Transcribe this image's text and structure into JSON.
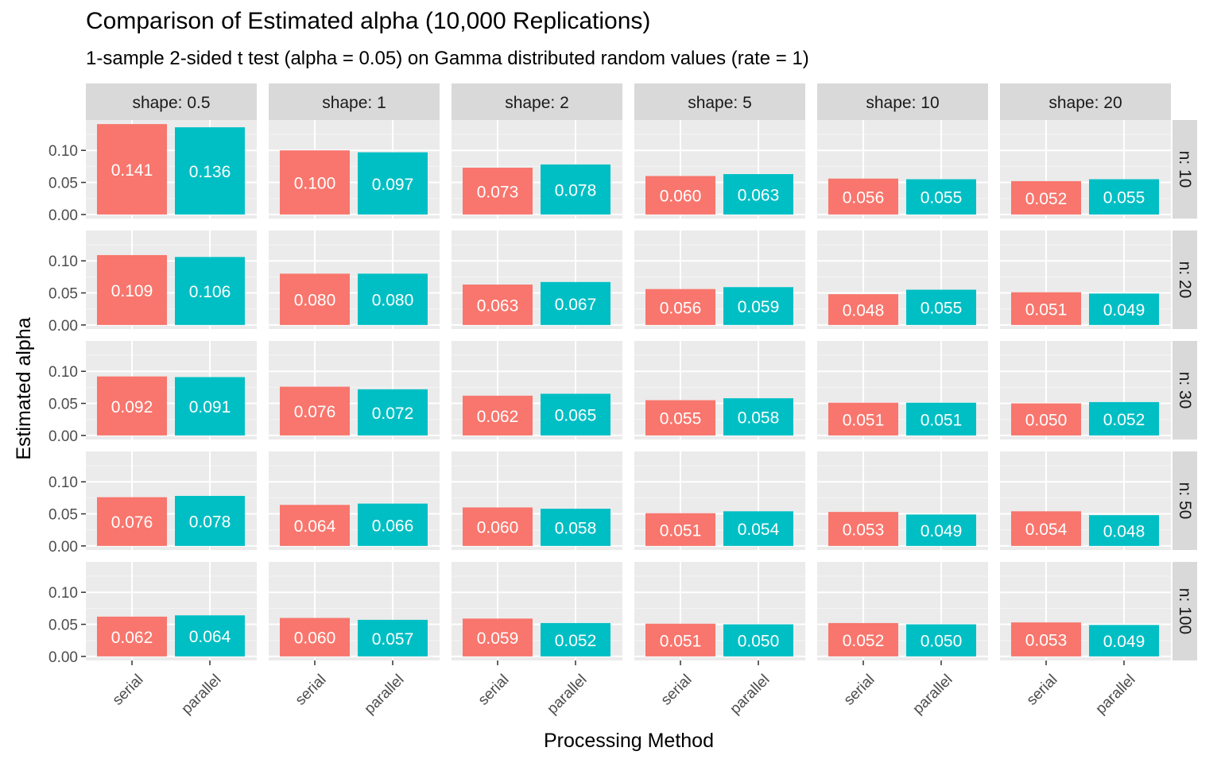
{
  "chart_data": {
    "type": "bar",
    "title": "Comparison of Estimated alpha (10,000 Replications)",
    "subtitle": "1-sample 2-sided t test (alpha = 0.05) on Gamma distributed random values (rate = 1)",
    "xlabel": "Processing Method",
    "ylabel": "Estimated alpha",
    "categories": [
      "serial",
      "parallel"
    ],
    "ylim": [
      0,
      0.141
    ],
    "yticks": [
      "0.00",
      "0.05",
      "0.10"
    ],
    "ytick_values": [
      0,
      0.05,
      0.1
    ],
    "facet_cols": [
      "shape: 0.5",
      "shape: 1",
      "shape: 2",
      "shape: 5",
      "shape: 10",
      "shape: 20"
    ],
    "facet_rows": [
      "n: 10",
      "n: 20",
      "n: 30",
      "n: 50",
      "n: 100"
    ],
    "colors": {
      "serial": "#F8766D",
      "parallel": "#00BFC4"
    },
    "grid": true,
    "legend": "none",
    "panels": [
      [
        [
          0.141,
          0.136
        ],
        [
          0.1,
          0.097
        ],
        [
          0.073,
          0.078
        ],
        [
          0.06,
          0.063
        ],
        [
          0.056,
          0.055
        ],
        [
          0.052,
          0.055
        ]
      ],
      [
        [
          0.109,
          0.106
        ],
        [
          0.08,
          0.08
        ],
        [
          0.063,
          0.067
        ],
        [
          0.056,
          0.059
        ],
        [
          0.048,
          0.055
        ],
        [
          0.051,
          0.049
        ]
      ],
      [
        [
          0.092,
          0.091
        ],
        [
          0.076,
          0.072
        ],
        [
          0.062,
          0.065
        ],
        [
          0.055,
          0.058
        ],
        [
          0.051,
          0.051
        ],
        [
          0.05,
          0.052
        ]
      ],
      [
        [
          0.076,
          0.078
        ],
        [
          0.064,
          0.066
        ],
        [
          0.06,
          0.058
        ],
        [
          0.051,
          0.054
        ],
        [
          0.053,
          0.049
        ],
        [
          0.054,
          0.048
        ]
      ],
      [
        [
          0.062,
          0.064
        ],
        [
          0.06,
          0.057
        ],
        [
          0.059,
          0.052
        ],
        [
          0.051,
          0.05
        ],
        [
          0.052,
          0.05
        ],
        [
          0.053,
          0.049
        ]
      ]
    ],
    "labels": [
      [
        [
          "0.141",
          "0.136"
        ],
        [
          "0.100",
          "0.097"
        ],
        [
          "0.073",
          "0.078"
        ],
        [
          "0.060",
          "0.063"
        ],
        [
          "0.056",
          "0.055"
        ],
        [
          "0.052",
          "0.055"
        ]
      ],
      [
        [
          "0.109",
          "0.106"
        ],
        [
          "0.080",
          "0.080"
        ],
        [
          "0.063",
          "0.067"
        ],
        [
          "0.056",
          "0.059"
        ],
        [
          "0.048",
          "0.055"
        ],
        [
          "0.051",
          "0.049"
        ]
      ],
      [
        [
          "0.092",
          "0.091"
        ],
        [
          "0.076",
          "0.072"
        ],
        [
          "0.062",
          "0.065"
        ],
        [
          "0.055",
          "0.058"
        ],
        [
          "0.051",
          "0.051"
        ],
        [
          "0.050",
          "0.052"
        ]
      ],
      [
        [
          "0.076",
          "0.078"
        ],
        [
          "0.064",
          "0.066"
        ],
        [
          "0.060",
          "0.058"
        ],
        [
          "0.051",
          "0.054"
        ],
        [
          "0.053",
          "0.049"
        ],
        [
          "0.054",
          "0.048"
        ]
      ],
      [
        [
          "0.062",
          "0.064"
        ],
        [
          "0.060",
          "0.057"
        ],
        [
          "0.059",
          "0.052"
        ],
        [
          "0.051",
          "0.050"
        ],
        [
          "0.052",
          "0.050"
        ],
        [
          "0.053",
          "0.049"
        ]
      ]
    ]
  }
}
